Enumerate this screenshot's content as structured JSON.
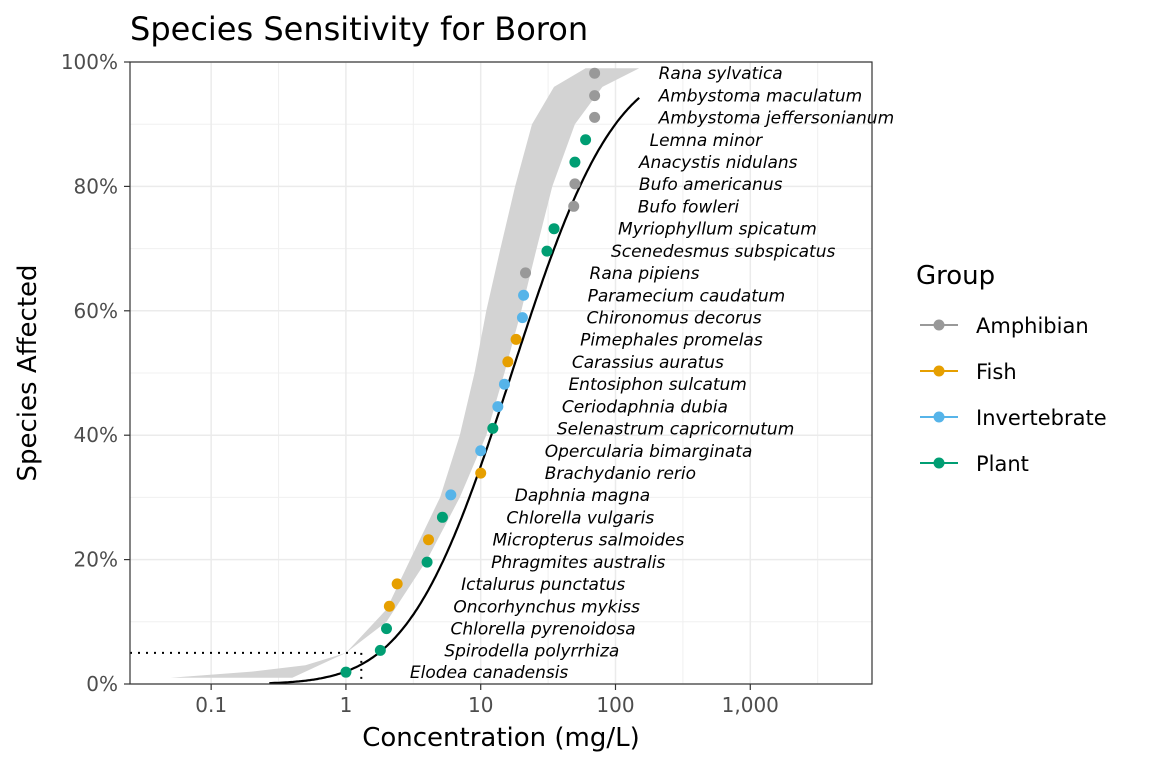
{
  "chart_data": {
    "type": "scatter",
    "title": "Species Sensitivity for Boron",
    "xlabel": "Concentration (mg/L)",
    "ylabel": "Species Affected",
    "x_scale": "log10",
    "xlim": [
      0.025,
      8000
    ],
    "ylim": [
      0,
      1
    ],
    "x_ticks": [
      {
        "value": 0.1,
        "label": "0.1"
      },
      {
        "value": 1,
        "label": "1"
      },
      {
        "value": 10,
        "label": "10"
      },
      {
        "value": 100,
        "label": "100"
      },
      {
        "value": 1000,
        "label": "1,000"
      }
    ],
    "y_ticks": [
      {
        "value": 0,
        "label": "0%"
      },
      {
        "value": 0.2,
        "label": "20%"
      },
      {
        "value": 0.4,
        "label": "40%"
      },
      {
        "value": 0.6,
        "label": "60%"
      },
      {
        "value": 0.8,
        "label": "80%"
      },
      {
        "value": 1,
        "label": "100%"
      }
    ],
    "grid": true,
    "legend": {
      "title": "Group",
      "position": "right",
      "entries": [
        {
          "name": "Amphibian",
          "color": "#999999"
        },
        {
          "name": "Fish",
          "color": "#E69F00"
        },
        {
          "name": "Invertebrate",
          "color": "#56B4E9"
        },
        {
          "name": "Plant",
          "color": "#009E73"
        }
      ]
    },
    "points": [
      {
        "species": "Elodea canadensis",
        "group": "Plant",
        "x": 1.0,
        "y": 0.019
      },
      {
        "species": "Spirodella polyrrhiza",
        "group": "Plant",
        "x": 1.8,
        "y": 0.054
      },
      {
        "species": "Chlorella pyrenoidosa",
        "group": "Plant",
        "x": 2.0,
        "y": 0.089
      },
      {
        "species": "Oncorhynchus mykiss",
        "group": "Fish",
        "x": 2.1,
        "y": 0.125
      },
      {
        "species": "Ictalurus punctatus",
        "group": "Fish",
        "x": 2.4,
        "y": 0.161
      },
      {
        "species": "Phragmites australis",
        "group": "Plant",
        "x": 4.0,
        "y": 0.196
      },
      {
        "species": "Micropterus salmoides",
        "group": "Fish",
        "x": 4.1,
        "y": 0.232
      },
      {
        "species": "Chlorella vulgaris",
        "group": "Plant",
        "x": 5.2,
        "y": 0.268
      },
      {
        "species": "Daphnia magna",
        "group": "Invertebrate",
        "x": 6.0,
        "y": 0.304
      },
      {
        "species": "Brachydanio rerio",
        "group": "Fish",
        "x": 10.0,
        "y": 0.339
      },
      {
        "species": "Opercularia bimarginata",
        "group": "Invertebrate",
        "x": 10.0,
        "y": 0.375
      },
      {
        "species": "Selenastrum capricornutum",
        "group": "Plant",
        "x": 12.3,
        "y": 0.411
      },
      {
        "species": "Ceriodaphnia dubia",
        "group": "Invertebrate",
        "x": 13.4,
        "y": 0.446
      },
      {
        "species": "Entosiphon sulcatum",
        "group": "Invertebrate",
        "x": 15.0,
        "y": 0.482
      },
      {
        "species": "Carassius auratus",
        "group": "Fish",
        "x": 15.9,
        "y": 0.518
      },
      {
        "species": "Pimephales promelas",
        "group": "Fish",
        "x": 18.3,
        "y": 0.554
      },
      {
        "species": "Chironomus decorus",
        "group": "Invertebrate",
        "x": 20.4,
        "y": 0.589
      },
      {
        "species": "Paramecium caudatum",
        "group": "Invertebrate",
        "x": 20.8,
        "y": 0.625
      },
      {
        "species": "Rana pipiens",
        "group": "Amphibian",
        "x": 21.5,
        "y": 0.661
      },
      {
        "species": "Scenedesmus subspicatus",
        "group": "Plant",
        "x": 31.0,
        "y": 0.696
      },
      {
        "species": "Myriophyllum spicatum",
        "group": "Plant",
        "x": 35.0,
        "y": 0.732
      },
      {
        "species": "Bufo fowleri",
        "group": "Amphibian",
        "x": 49.0,
        "y": 0.768
      },
      {
        "species": "Bufo americanus",
        "group": "Amphibian",
        "x": 50.0,
        "y": 0.804
      },
      {
        "species": "Anacystis nidulans",
        "group": "Plant",
        "x": 50.0,
        "y": 0.839
      },
      {
        "species": "Lemna minor",
        "group": "Plant",
        "x": 60.0,
        "y": 0.875
      },
      {
        "species": "Ambystoma jeffersonianum",
        "group": "Amphibian",
        "x": 70.0,
        "y": 0.911
      },
      {
        "species": "Ambystoma maculatum",
        "group": "Amphibian",
        "x": 70.0,
        "y": 0.946
      },
      {
        "species": "Rana sylvatica",
        "group": "Amphibian",
        "x": 70.0,
        "y": 0.982
      }
    ],
    "fitted_curve": {
      "type": "lognormal_cdf",
      "median": 17.0,
      "sdlog_log10": 0.6,
      "x_range": [
        0.27,
        150
      ]
    },
    "confidence_band": {
      "lower": [
        [
          0.05,
          0.01
        ],
        [
          0.2,
          0.02
        ],
        [
          0.5,
          0.03
        ],
        [
          1,
          0.05
        ],
        [
          2,
          0.1
        ],
        [
          4,
          0.2
        ],
        [
          7,
          0.3
        ],
        [
          11,
          0.4
        ],
        [
          15,
          0.5
        ],
        [
          20,
          0.6
        ],
        [
          26,
          0.7
        ],
        [
          34,
          0.8
        ],
        [
          50,
          0.9
        ],
        [
          80,
          0.96
        ],
        [
          150,
          0.99
        ],
        [
          300,
          0.99
        ]
      ],
      "upper": [
        [
          0.4,
          0.01
        ],
        [
          1,
          0.05
        ],
        [
          2,
          0.12
        ],
        [
          3,
          0.2
        ],
        [
          5,
          0.3
        ],
        [
          7,
          0.4
        ],
        [
          9,
          0.5
        ],
        [
          11,
          0.6
        ],
        [
          14,
          0.7
        ],
        [
          18,
          0.8
        ],
        [
          24,
          0.9
        ],
        [
          35,
          0.96
        ],
        [
          60,
          0.99
        ],
        [
          300,
          0.99
        ]
      ]
    },
    "hc5_reference": {
      "x": 1.3,
      "y": 0.05
    }
  }
}
